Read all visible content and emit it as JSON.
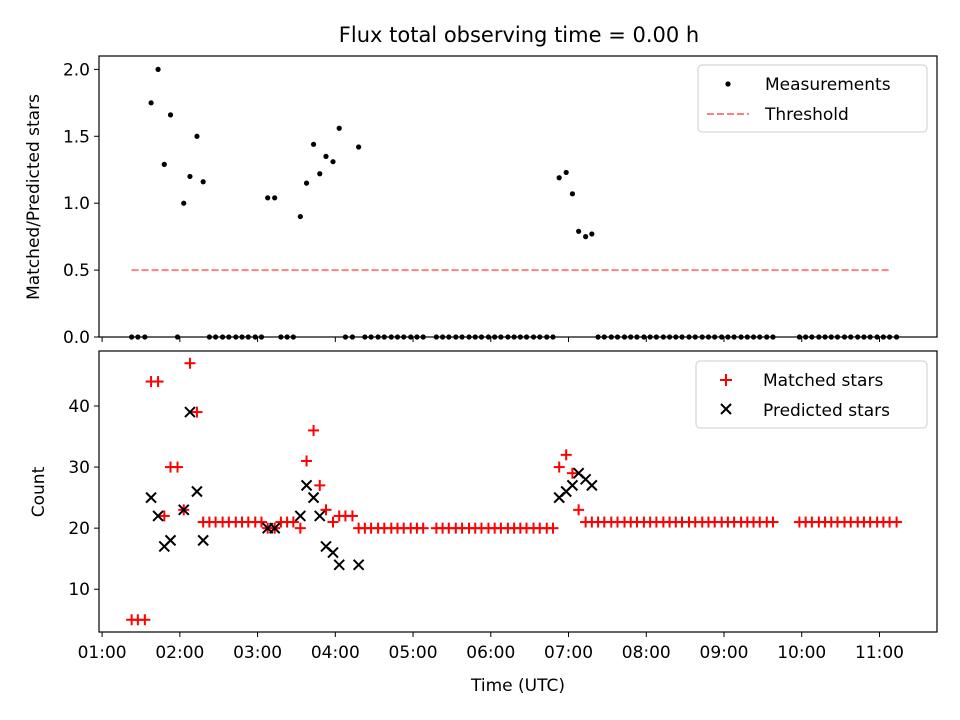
{
  "figure": {
    "title": "Flux total observing time = 0.00 h",
    "xlabel": "Time (UTC)",
    "x_tick_labels": [
      "01:00",
      "02:00",
      "03:00",
      "04:00",
      "05:00",
      "06:00",
      "07:00",
      "08:00",
      "09:00",
      "10:00",
      "11:00"
    ]
  },
  "chart_data": [
    {
      "type": "scatter",
      "title": "Flux total observing time = 0.00 h",
      "ylabel": "Matched/Predicted stars",
      "xlabel": "",
      "x_unit": "hours UTC",
      "xlim": [
        0.96,
        11.74
      ],
      "ylim": [
        0,
        2.1
      ],
      "y_ticks": [
        0.0,
        0.5,
        1.0,
        1.5,
        2.0
      ],
      "y_tick_labels": [
        "0.0",
        "0.5",
        "1.0",
        "1.5",
        "2.0"
      ],
      "legend": {
        "placement": "top-right",
        "entries": [
          "Measurements",
          "Threshold"
        ]
      },
      "series": [
        {
          "name": "Measurements",
          "marker": "dot",
          "color": "#000000",
          "points": [
            [
              1.38,
              0
            ],
            [
              1.46,
              0
            ],
            [
              1.55,
              0
            ],
            [
              1.63,
              1.75
            ],
            [
              1.72,
              2.0
            ],
            [
              1.8,
              1.29
            ],
            [
              1.88,
              1.66
            ],
            [
              1.97,
              0
            ],
            [
              2.05,
              1.0
            ],
            [
              2.13,
              1.2
            ],
            [
              2.22,
              1.5
            ],
            [
              2.3,
              1.16
            ],
            [
              2.38,
              0
            ],
            [
              2.46,
              0
            ],
            [
              2.55,
              0
            ],
            [
              2.63,
              0
            ],
            [
              2.72,
              0
            ],
            [
              2.8,
              0
            ],
            [
              2.88,
              0
            ],
            [
              2.97,
              0
            ],
            [
              3.05,
              0
            ],
            [
              3.13,
              1.04
            ],
            [
              3.22,
              1.04
            ],
            [
              3.3,
              0
            ],
            [
              3.38,
              0
            ],
            [
              3.46,
              0
            ],
            [
              3.55,
              0.9
            ],
            [
              3.63,
              1.15
            ],
            [
              3.72,
              1.44
            ],
            [
              3.8,
              1.22
            ],
            [
              3.88,
              1.35
            ],
            [
              3.97,
              1.31
            ],
            [
              4.05,
              1.56
            ],
            [
              4.13,
              0
            ],
            [
              4.22,
              0
            ],
            [
              4.3,
              1.42
            ],
            [
              4.38,
              0
            ],
            [
              4.46,
              0
            ],
            [
              4.55,
              0
            ],
            [
              4.63,
              0
            ],
            [
              4.72,
              0
            ],
            [
              4.8,
              0
            ],
            [
              4.88,
              0
            ],
            [
              4.97,
              0
            ],
            [
              5.05,
              0
            ],
            [
              5.13,
              0
            ],
            [
              5.3,
              0
            ],
            [
              5.38,
              0
            ],
            [
              5.46,
              0
            ],
            [
              5.55,
              0
            ],
            [
              5.63,
              0
            ],
            [
              5.72,
              0
            ],
            [
              5.8,
              0
            ],
            [
              5.88,
              0
            ],
            [
              5.97,
              0
            ],
            [
              6.05,
              0
            ],
            [
              6.13,
              0
            ],
            [
              6.22,
              0
            ],
            [
              6.3,
              0
            ],
            [
              6.38,
              0
            ],
            [
              6.46,
              0
            ],
            [
              6.55,
              0
            ],
            [
              6.63,
              0
            ],
            [
              6.72,
              0
            ],
            [
              6.8,
              0
            ],
            [
              6.88,
              1.19
            ],
            [
              6.97,
              1.23
            ],
            [
              7.05,
              1.07
            ],
            [
              7.13,
              0.79
            ],
            [
              7.22,
              0.75
            ],
            [
              7.3,
              0.77
            ],
            [
              7.38,
              0
            ],
            [
              7.46,
              0
            ],
            [
              7.55,
              0
            ],
            [
              7.63,
              0
            ],
            [
              7.72,
              0
            ],
            [
              7.8,
              0
            ],
            [
              7.88,
              0
            ],
            [
              7.97,
              0
            ],
            [
              8.05,
              0
            ],
            [
              8.13,
              0
            ],
            [
              8.22,
              0
            ],
            [
              8.3,
              0
            ],
            [
              8.38,
              0
            ],
            [
              8.46,
              0
            ],
            [
              8.55,
              0
            ],
            [
              8.63,
              0
            ],
            [
              8.72,
              0
            ],
            [
              8.8,
              0
            ],
            [
              8.88,
              0
            ],
            [
              8.97,
              0
            ],
            [
              9.05,
              0
            ],
            [
              9.13,
              0
            ],
            [
              9.22,
              0
            ],
            [
              9.3,
              0
            ],
            [
              9.38,
              0
            ],
            [
              9.46,
              0
            ],
            [
              9.55,
              0
            ],
            [
              9.63,
              0
            ],
            [
              9.97,
              0
            ],
            [
              10.05,
              0
            ],
            [
              10.13,
              0
            ],
            [
              10.22,
              0
            ],
            [
              10.3,
              0
            ],
            [
              10.38,
              0
            ],
            [
              10.46,
              0
            ],
            [
              10.55,
              0
            ],
            [
              10.63,
              0
            ],
            [
              10.72,
              0
            ],
            [
              10.8,
              0
            ],
            [
              10.88,
              0
            ],
            [
              10.97,
              0
            ],
            [
              11.05,
              0
            ],
            [
              11.13,
              0
            ],
            [
              11.22,
              0
            ]
          ]
        },
        {
          "name": "Threshold",
          "type": "line",
          "style": "dashed",
          "color": "#ff7f7f",
          "points": [
            [
              1.38,
              0.5
            ],
            [
              11.15,
              0.5
            ]
          ]
        }
      ]
    },
    {
      "type": "scatter",
      "ylabel": "Count",
      "xlabel": "Time (UTC)",
      "x_unit": "hours UTC",
      "xlim": [
        0.96,
        11.74
      ],
      "ylim": [
        3,
        49
      ],
      "y_ticks": [
        10,
        20,
        30,
        40
      ],
      "y_tick_labels": [
        "10",
        "20",
        "30",
        "40"
      ],
      "legend": {
        "placement": "top-right",
        "entries": [
          "Matched stars",
          "Predicted stars"
        ]
      },
      "series": [
        {
          "name": "Matched stars",
          "marker": "plus",
          "color": "#ff0000",
          "points": [
            [
              1.38,
              5
            ],
            [
              1.46,
              5
            ],
            [
              1.55,
              5
            ],
            [
              1.63,
              44
            ],
            [
              1.72,
              44
            ],
            [
              1.8,
              22
            ],
            [
              1.88,
              30
            ],
            [
              1.97,
              30
            ],
            [
              2.05,
              23
            ],
            [
              2.13,
              47
            ],
            [
              2.22,
              39
            ],
            [
              2.3,
              21
            ],
            [
              2.38,
              21
            ],
            [
              2.46,
              21
            ],
            [
              2.55,
              21
            ],
            [
              2.63,
              21
            ],
            [
              2.72,
              21
            ],
            [
              2.8,
              21
            ],
            [
              2.88,
              21
            ],
            [
              2.97,
              21
            ],
            [
              3.05,
              21
            ],
            [
              3.13,
              20
            ],
            [
              3.22,
              20
            ],
            [
              3.3,
              21
            ],
            [
              3.38,
              21
            ],
            [
              3.46,
              21
            ],
            [
              3.55,
              20
            ],
            [
              3.63,
              31
            ],
            [
              3.72,
              36
            ],
            [
              3.8,
              27
            ],
            [
              3.88,
              23
            ],
            [
              3.97,
              21
            ],
            [
              4.05,
              22
            ],
            [
              4.13,
              22
            ],
            [
              4.22,
              22
            ],
            [
              4.3,
              20
            ],
            [
              4.38,
              20
            ],
            [
              4.46,
              20
            ],
            [
              4.55,
              20
            ],
            [
              4.63,
              20
            ],
            [
              4.72,
              20
            ],
            [
              4.8,
              20
            ],
            [
              4.88,
              20
            ],
            [
              4.97,
              20
            ],
            [
              5.05,
              20
            ],
            [
              5.13,
              20
            ],
            [
              5.3,
              20
            ],
            [
              5.38,
              20
            ],
            [
              5.46,
              20
            ],
            [
              5.55,
              20
            ],
            [
              5.63,
              20
            ],
            [
              5.72,
              20
            ],
            [
              5.8,
              20
            ],
            [
              5.88,
              20
            ],
            [
              5.97,
              20
            ],
            [
              6.05,
              20
            ],
            [
              6.13,
              20
            ],
            [
              6.22,
              20
            ],
            [
              6.3,
              20
            ],
            [
              6.38,
              20
            ],
            [
              6.46,
              20
            ],
            [
              6.55,
              20
            ],
            [
              6.63,
              20
            ],
            [
              6.72,
              20
            ],
            [
              6.8,
              20
            ],
            [
              6.88,
              30
            ],
            [
              6.97,
              32
            ],
            [
              7.05,
              29
            ],
            [
              7.13,
              23
            ],
            [
              7.22,
              21
            ],
            [
              7.3,
              21
            ],
            [
              7.38,
              21
            ],
            [
              7.46,
              21
            ],
            [
              7.55,
              21
            ],
            [
              7.63,
              21
            ],
            [
              7.72,
              21
            ],
            [
              7.8,
              21
            ],
            [
              7.88,
              21
            ],
            [
              7.97,
              21
            ],
            [
              8.05,
              21
            ],
            [
              8.13,
              21
            ],
            [
              8.22,
              21
            ],
            [
              8.3,
              21
            ],
            [
              8.38,
              21
            ],
            [
              8.46,
              21
            ],
            [
              8.55,
              21
            ],
            [
              8.63,
              21
            ],
            [
              8.72,
              21
            ],
            [
              8.8,
              21
            ],
            [
              8.88,
              21
            ],
            [
              8.97,
              21
            ],
            [
              9.05,
              21
            ],
            [
              9.13,
              21
            ],
            [
              9.22,
              21
            ],
            [
              9.3,
              21
            ],
            [
              9.38,
              21
            ],
            [
              9.46,
              21
            ],
            [
              9.55,
              21
            ],
            [
              9.63,
              21
            ],
            [
              9.97,
              21
            ],
            [
              10.05,
              21
            ],
            [
              10.13,
              21
            ],
            [
              10.22,
              21
            ],
            [
              10.3,
              21
            ],
            [
              10.38,
              21
            ],
            [
              10.46,
              21
            ],
            [
              10.55,
              21
            ],
            [
              10.63,
              21
            ],
            [
              10.72,
              21
            ],
            [
              10.8,
              21
            ],
            [
              10.88,
              21
            ],
            [
              10.97,
              21
            ],
            [
              11.05,
              21
            ],
            [
              11.13,
              21
            ],
            [
              11.22,
              21
            ]
          ]
        },
        {
          "name": "Predicted stars",
          "marker": "x",
          "color": "#000000",
          "points": [
            [
              1.63,
              25
            ],
            [
              1.72,
              22
            ],
            [
              1.8,
              17
            ],
            [
              1.88,
              18
            ],
            [
              2.05,
              23
            ],
            [
              2.13,
              39
            ],
            [
              2.22,
              26
            ],
            [
              2.3,
              18
            ],
            [
              3.13,
              20
            ],
            [
              3.22,
              20
            ],
            [
              3.55,
              22
            ],
            [
              3.63,
              27
            ],
            [
              3.72,
              25
            ],
            [
              3.8,
              22
            ],
            [
              3.88,
              17
            ],
            [
              3.97,
              16
            ],
            [
              4.05,
              14
            ],
            [
              4.3,
              14
            ],
            [
              6.88,
              25
            ],
            [
              6.97,
              26
            ],
            [
              7.05,
              27
            ],
            [
              7.13,
              29
            ],
            [
              7.22,
              28
            ],
            [
              7.3,
              27
            ]
          ]
        }
      ]
    }
  ]
}
